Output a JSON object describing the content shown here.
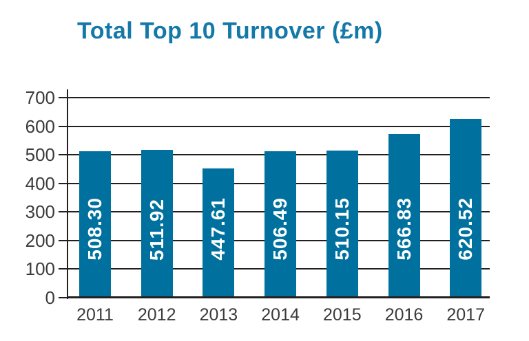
{
  "chart_data": {
    "type": "bar",
    "title": "Total Top 10 Turnover (£m)",
    "categories": [
      "2011",
      "2012",
      "2013",
      "2014",
      "2015",
      "2016",
      "2017"
    ],
    "values": [
      508.3,
      511.92,
      447.61,
      506.49,
      510.15,
      566.83,
      620.52
    ],
    "value_labels": [
      "508.30",
      "511.92",
      "447.61",
      "506.49",
      "510.15",
      "566.83",
      "620.52"
    ],
    "xlabel": "",
    "ylabel": "",
    "ylim": [
      0,
      700
    ],
    "yticks": [
      0,
      100,
      200,
      300,
      400,
      500,
      600,
      700
    ],
    "grid": "horizontal",
    "legend": "none",
    "value_label_position": "inside-vertical"
  },
  "colors": {
    "bar": "#00719e",
    "title": "#1478a9",
    "axis": "#231f20",
    "gridline": "#231f20",
    "tick_label": "#3b3b3b",
    "value_label": "#ffffff",
    "background": "#ffffff"
  }
}
